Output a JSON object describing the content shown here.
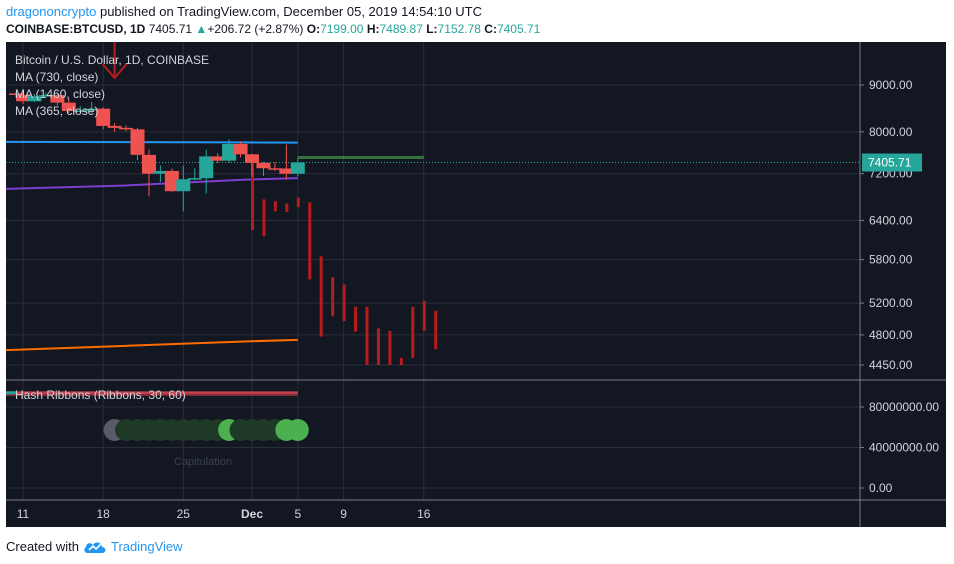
{
  "header": {
    "user": "dragononcrypto",
    "published_text": "published on TradingView.com, December 05, 2019 14:54:10 UTC",
    "symbol": "COINBASE:BTCUSD, 1D",
    "last": "7405.71",
    "change": "+206.72 (+2.87%)",
    "open_label": "O:",
    "open": "7199.00",
    "high_label": "H:",
    "high": "7489.87",
    "low_label": "L:",
    "low": "7152.78",
    "close_label": "C:",
    "close": "7405.71"
  },
  "legend": {
    "title": "Bitcoin / U.S. Dollar, 1D, COINBASE",
    "ma1": "MA (730, close)",
    "ma2": "MA (1460, close)",
    "ma3": "MA (365, close)",
    "hash": "Hash Ribbons (Ribbons, 30, 60)",
    "capitulation": "Capitulation"
  },
  "footer": {
    "created_with": "Created with",
    "brand": "TradingView"
  },
  "colors": {
    "background": "#131722",
    "up": "#26a69a",
    "down": "#ef5350",
    "projection": "#b71c1c",
    "ma730": "#2196f3",
    "ma1460": "#ff6d00",
    "ma365": "#7e3fd1",
    "ribbon": "#c2404d"
  },
  "chart_data": {
    "type": "candlestick",
    "price_ticks": [
      "9000.00",
      "8000.00",
      "7200.00",
      "6400.00",
      "5800.00",
      "5200.00",
      "4800.00",
      "4450.00"
    ],
    "last_price_label": "7405.71",
    "osc_ticks": [
      "80000000.00",
      "40000000.00",
      "0.00"
    ],
    "x_ticks": [
      "11",
      "18",
      "25",
      "Dec",
      "5",
      "9",
      "16"
    ],
    "candles": [
      {
        "date": "2019-11-10",
        "o": 8810,
        "h": 8840,
        "l": 8720,
        "c": 8780
      },
      {
        "date": "2019-11-11",
        "o": 8780,
        "h": 8850,
        "l": 8580,
        "c": 8640
      },
      {
        "date": "2019-11-12",
        "o": 8640,
        "h": 8800,
        "l": 8620,
        "c": 8750
      },
      {
        "date": "2019-11-13",
        "o": 8750,
        "h": 8830,
        "l": 8720,
        "c": 8775
      },
      {
        "date": "2019-11-14",
        "o": 8775,
        "h": 8790,
        "l": 8550,
        "c": 8610
      },
      {
        "date": "2019-11-15",
        "o": 8610,
        "h": 8700,
        "l": 8380,
        "c": 8430
      },
      {
        "date": "2019-11-16",
        "o": 8430,
        "h": 8530,
        "l": 8420,
        "c": 8440
      },
      {
        "date": "2019-11-17",
        "o": 8440,
        "h": 8620,
        "l": 8380,
        "c": 8480
      },
      {
        "date": "2019-11-18",
        "o": 8480,
        "h": 8510,
        "l": 8050,
        "c": 8120
      },
      {
        "date": "2019-11-19",
        "o": 8120,
        "h": 8180,
        "l": 8000,
        "c": 8080
      },
      {
        "date": "2019-11-20",
        "o": 8080,
        "h": 8130,
        "l": 8010,
        "c": 8050
      },
      {
        "date": "2019-11-21",
        "o": 8050,
        "h": 8080,
        "l": 7450,
        "c": 7550
      },
      {
        "date": "2019-11-22",
        "o": 7550,
        "h": 7650,
        "l": 6800,
        "c": 7200
      },
      {
        "date": "2019-11-23",
        "o": 7200,
        "h": 7350,
        "l": 7050,
        "c": 7250
      },
      {
        "date": "2019-11-24",
        "o": 7250,
        "h": 7300,
        "l": 6880,
        "c": 6890
      },
      {
        "date": "2019-11-25",
        "o": 6890,
        "h": 7350,
        "l": 6550,
        "c": 7100
      },
      {
        "date": "2019-11-26",
        "o": 7100,
        "h": 7300,
        "l": 7080,
        "c": 7120
      },
      {
        "date": "2019-11-27",
        "o": 7120,
        "h": 7650,
        "l": 6850,
        "c": 7520
      },
      {
        "date": "2019-11-28",
        "o": 7520,
        "h": 7580,
        "l": 7400,
        "c": 7440
      },
      {
        "date": "2019-11-29",
        "o": 7440,
        "h": 7850,
        "l": 7400,
        "c": 7760
      },
      {
        "date": "2019-11-30",
        "o": 7760,
        "h": 7810,
        "l": 7500,
        "c": 7560
      },
      {
        "date": "2019-12-01",
        "o": 7560,
        "h": 7570,
        "l": 7150,
        "c": 7400
      },
      {
        "date": "2019-12-02",
        "o": 7400,
        "h": 7420,
        "l": 7160,
        "c": 7300
      },
      {
        "date": "2019-12-03",
        "o": 7300,
        "h": 7410,
        "l": 7250,
        "c": 7295
      },
      {
        "date": "2019-12-04",
        "o": 7295,
        "h": 7750,
        "l": 7100,
        "c": 7199
      },
      {
        "date": "2019-12-05",
        "o": 7199,
        "h": 7489.87,
        "l": 7152.78,
        "c": 7405.71
      }
    ],
    "projection": [
      {
        "date": "2019-12-01",
        "h": 7550,
        "l": 6250
      },
      {
        "date": "2019-12-02",
        "h": 6750,
        "l": 6150
      },
      {
        "date": "2019-12-03",
        "h": 6720,
        "l": 6550
      },
      {
        "date": "2019-12-04",
        "h": 6680,
        "l": 6540
      },
      {
        "date": "2019-12-05",
        "h": 6780,
        "l": 6620
      },
      {
        "date": "2019-12-06",
        "h": 6700,
        "l": 5520
      },
      {
        "date": "2019-12-07",
        "h": 5850,
        "l": 4780
      },
      {
        "date": "2019-12-08",
        "h": 5550,
        "l": 5030
      },
      {
        "date": "2019-12-09",
        "h": 5450,
        "l": 4970
      },
      {
        "date": "2019-12-10",
        "h": 5150,
        "l": 4840
      },
      {
        "date": "2019-12-11",
        "h": 5150,
        "l": 4450
      },
      {
        "date": "2019-12-12",
        "h": 4880,
        "l": 4450
      },
      {
        "date": "2019-12-13",
        "h": 4850,
        "l": 4450
      },
      {
        "date": "2019-12-14",
        "h": 4530,
        "l": 4450
      },
      {
        "date": "2019-12-15",
        "h": 5150,
        "l": 4530
      },
      {
        "date": "2019-12-16",
        "h": 5230,
        "l": 4850
      },
      {
        "date": "2019-12-17",
        "h": 5100,
        "l": 4630
      }
    ],
    "ma730": [
      {
        "date": "2019-11-10",
        "v": 7800
      },
      {
        "date": "2019-11-30",
        "v": 7790
      },
      {
        "date": "2019-12-05",
        "v": 7785
      }
    ],
    "ma1460": [
      {
        "date": "2019-11-10",
        "v": 4620
      },
      {
        "date": "2019-11-20",
        "v": 4670
      },
      {
        "date": "2019-11-30",
        "v": 4720
      },
      {
        "date": "2019-12-05",
        "v": 4740
      }
    ],
    "ma365": [
      {
        "date": "2019-11-10",
        "v": 6930
      },
      {
        "date": "2019-11-20",
        "v": 6990
      },
      {
        "date": "2019-11-30",
        "v": 7090
      },
      {
        "date": "2019-12-05",
        "v": 7120
      }
    ],
    "resistance_level": 7500,
    "hash_ribbon": {
      "fast": 94000000,
      "slow": 92000000,
      "dots": [
        {
          "date": "2019-11-19",
          "state": "capitulation"
        },
        {
          "date": "2019-11-20",
          "state": "dim"
        },
        {
          "date": "2019-11-21",
          "state": "dim"
        },
        {
          "date": "2019-11-22",
          "state": "dim"
        },
        {
          "date": "2019-11-23",
          "state": "dim"
        },
        {
          "date": "2019-11-24",
          "state": "dim"
        },
        {
          "date": "2019-11-25",
          "state": "dim"
        },
        {
          "date": "2019-11-26",
          "state": "dim"
        },
        {
          "date": "2019-11-27",
          "state": "dim"
        },
        {
          "date": "2019-11-28",
          "state": "dim"
        },
        {
          "date": "2019-11-29",
          "state": "bright"
        },
        {
          "date": "2019-11-30",
          "state": "dim"
        },
        {
          "date": "2019-12-01",
          "state": "dim"
        },
        {
          "date": "2019-12-02",
          "state": "dim"
        },
        {
          "date": "2019-12-03",
          "state": "dim"
        },
        {
          "date": "2019-12-04",
          "state": "bright"
        },
        {
          "date": "2019-12-05",
          "state": "bright"
        }
      ]
    },
    "arrow_date": "2019-11-19"
  }
}
